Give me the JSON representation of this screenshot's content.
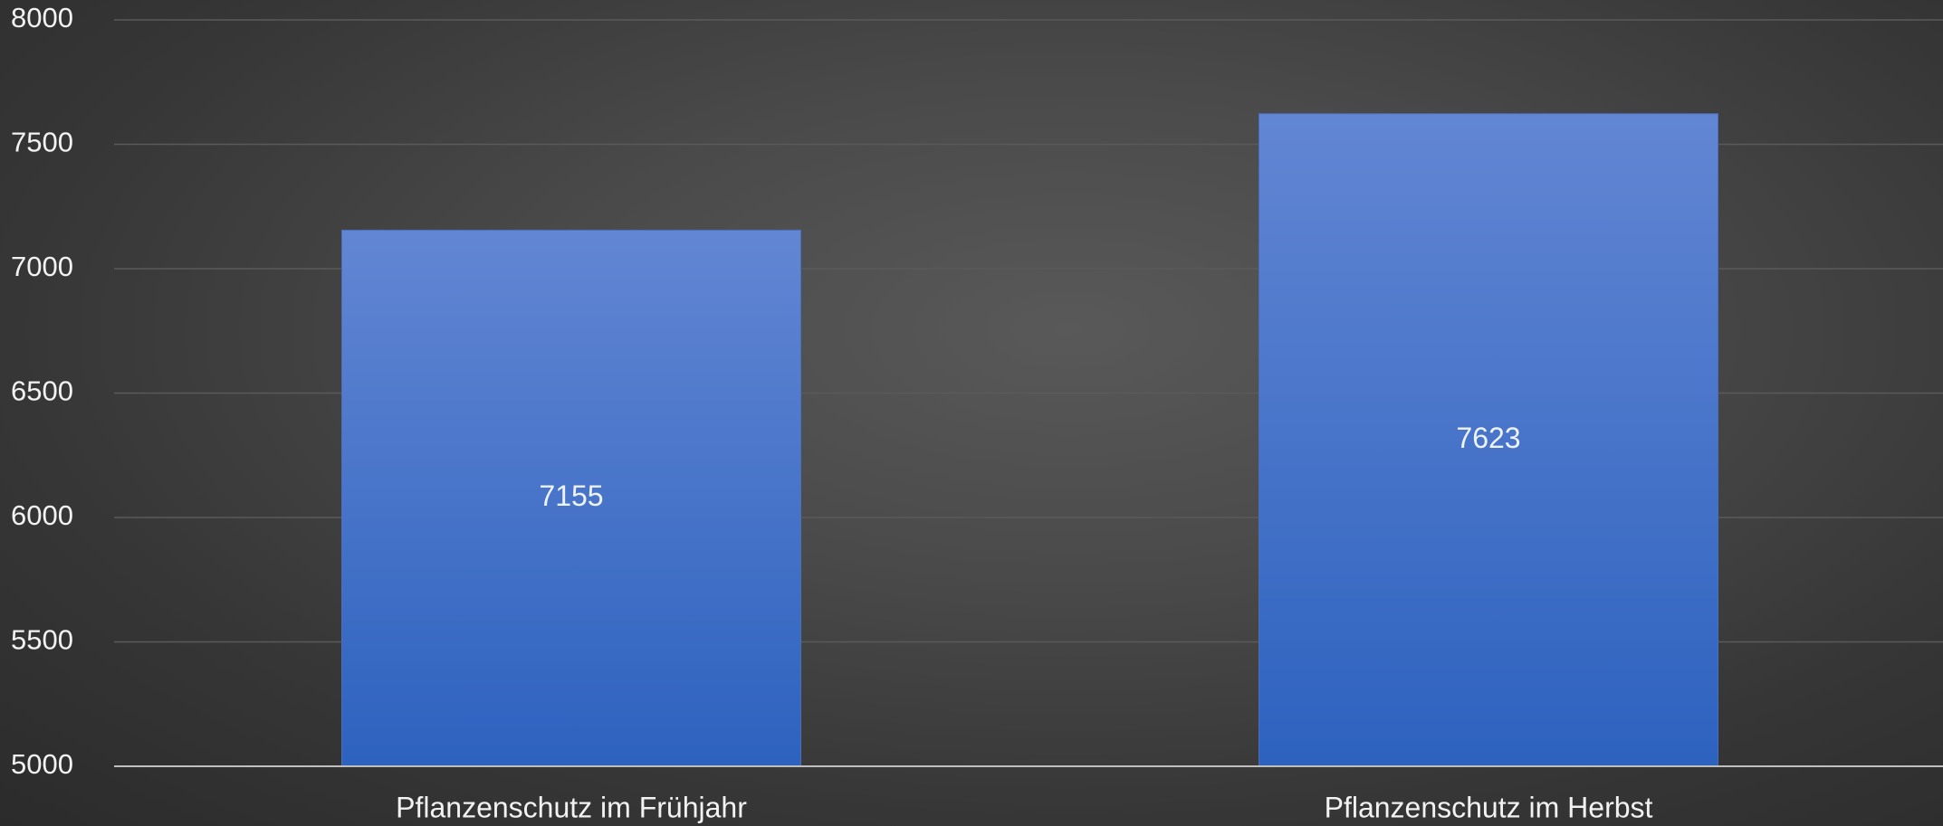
{
  "chart_data": {
    "type": "bar",
    "categories": [
      "Pflanzenschutz im Frühjahr",
      "Pflanzenschutz im Herbst"
    ],
    "values": [
      7155,
      7623
    ],
    "data_labels": [
      "7155",
      "7623"
    ],
    "title": "",
    "xlabel": "",
    "ylabel": "",
    "ylim": [
      5000,
      8000
    ],
    "yticks": [
      5000,
      5500,
      6000,
      6500,
      7000,
      7500,
      8000
    ],
    "ytick_labels": [
      "5000",
      "5500",
      "6000",
      "6500",
      "7000",
      "7500",
      "8000"
    ],
    "grid": true,
    "legend": "none",
    "bar_color_top": "#6286d3",
    "bar_color_bottom": "#2d62bf",
    "background_color": "#404040",
    "gridline_color": "#5a5a5a",
    "axis_line_color": "#bfbfbf",
    "text_color": "#f2f2f2"
  }
}
